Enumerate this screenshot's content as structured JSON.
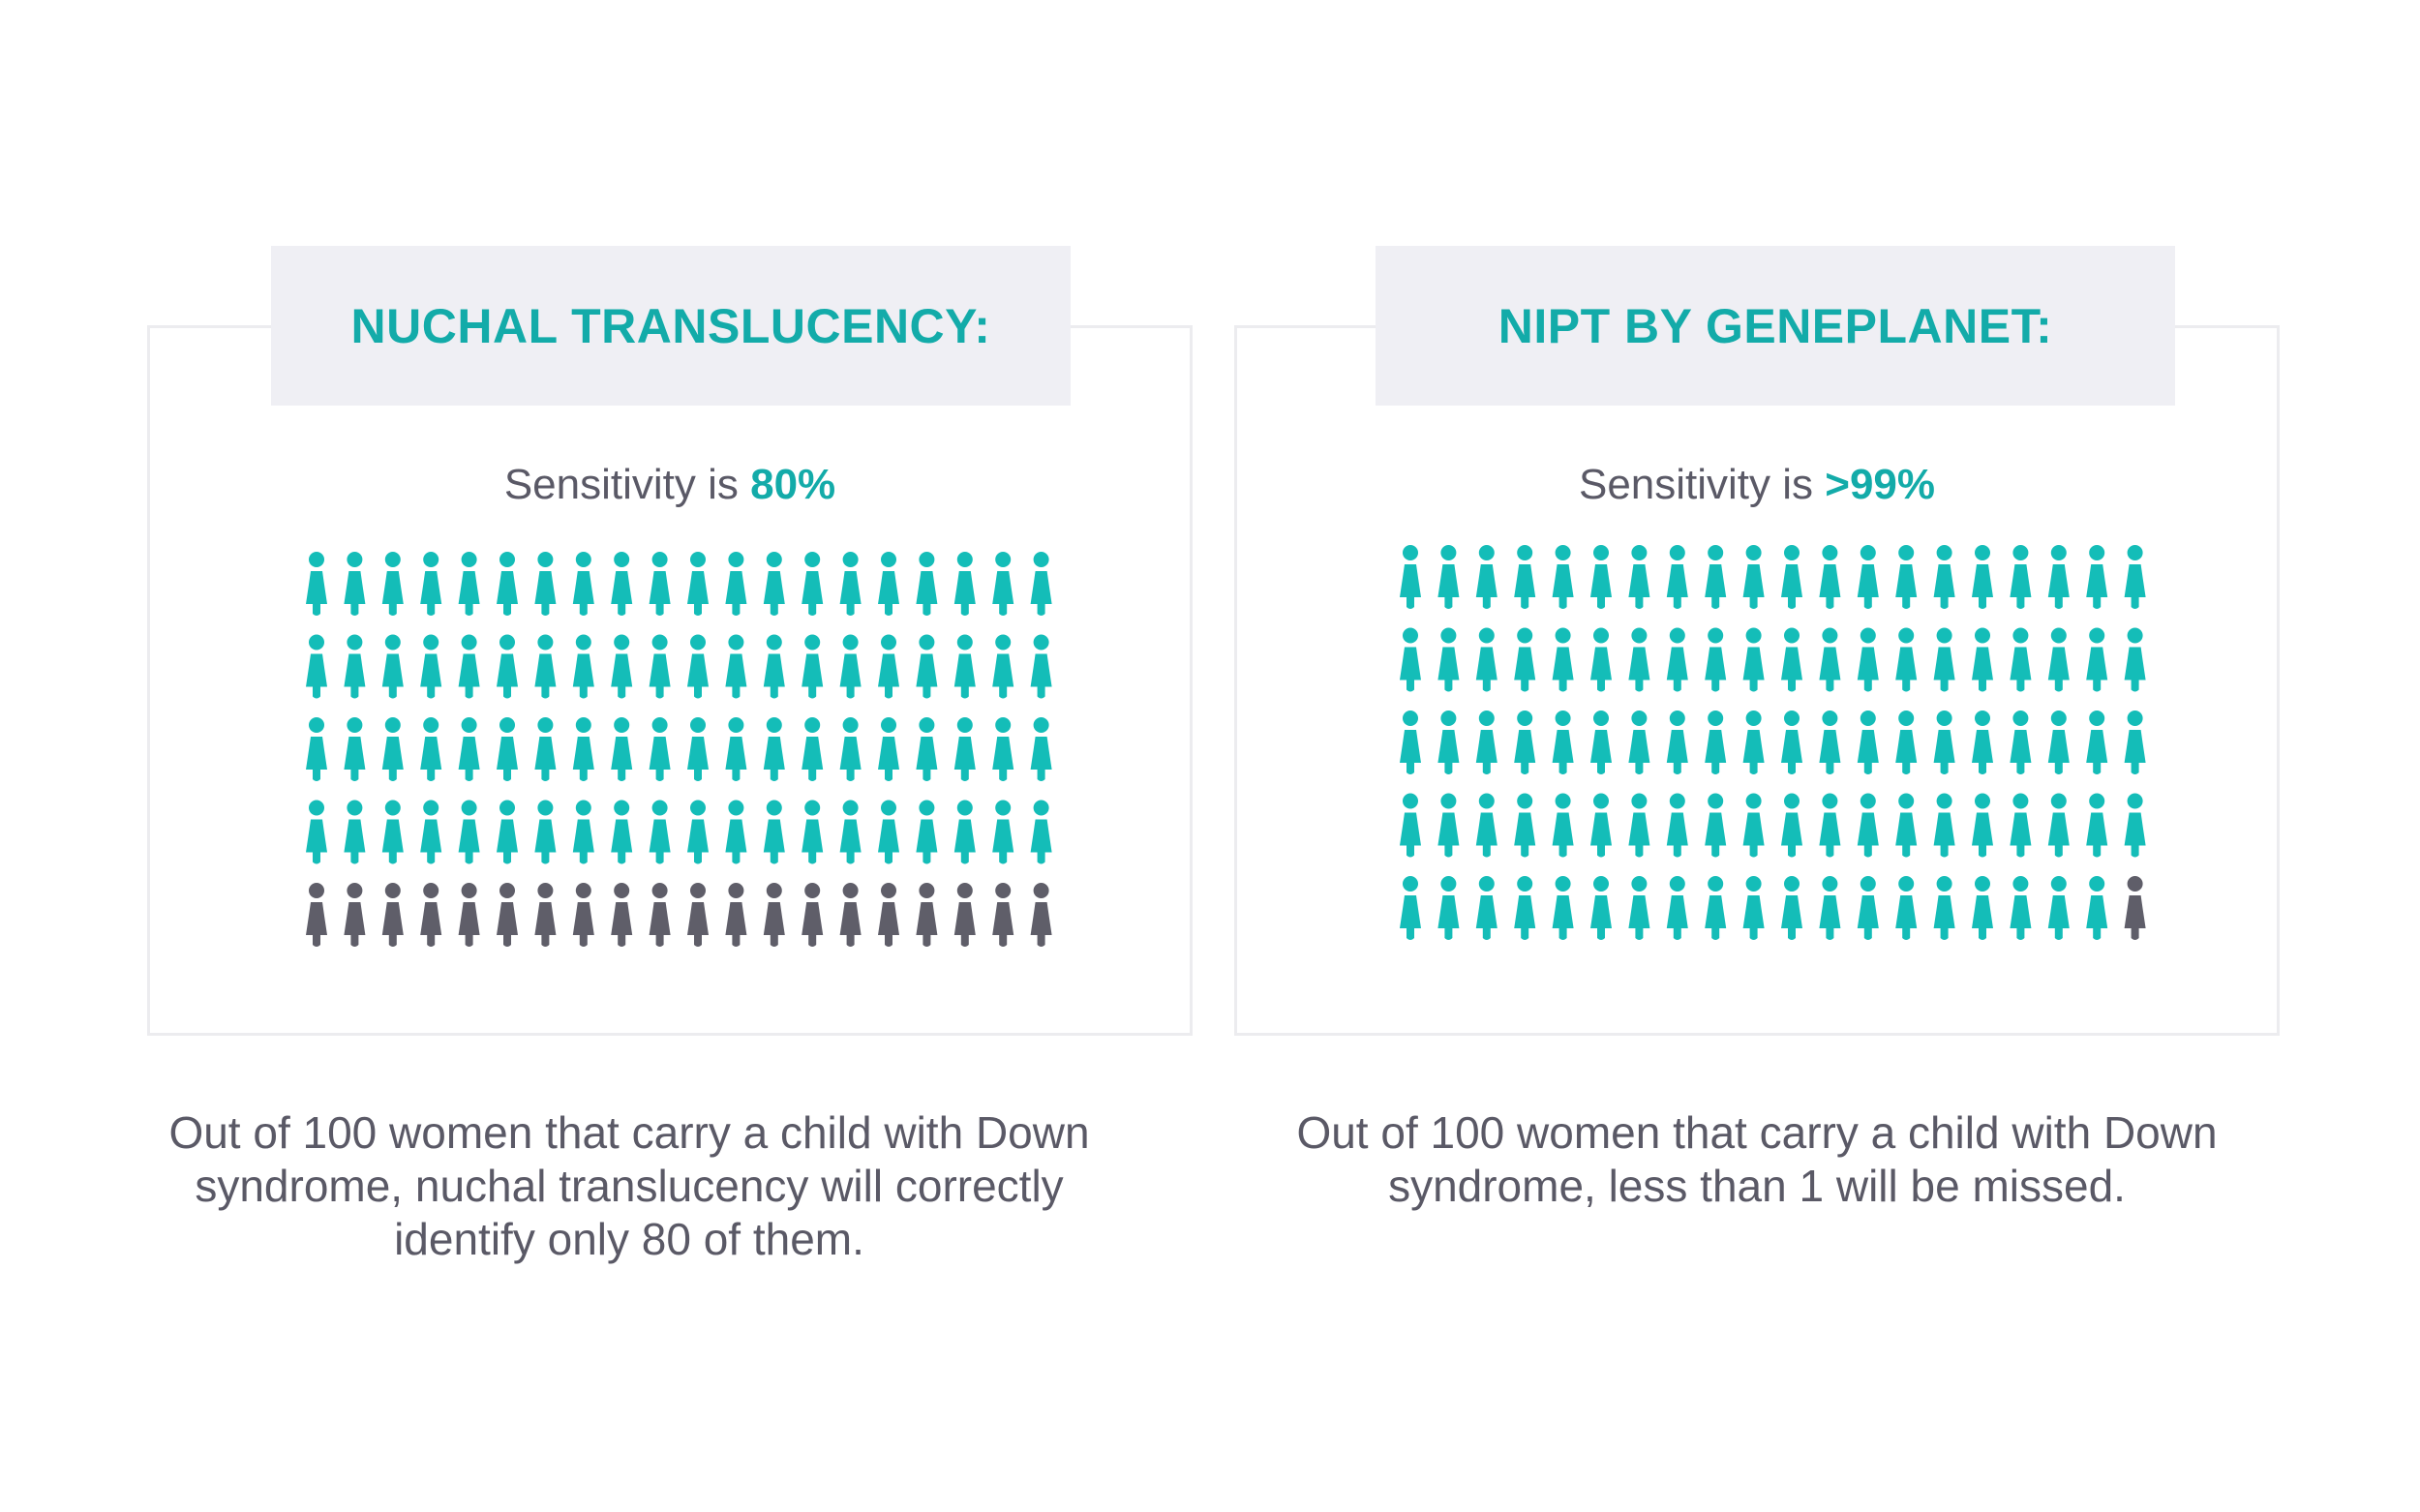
{
  "left": {
    "title": "NUCHAL TRANSLUCENCY:",
    "sensitivity_prefix": "Sensitivity is ",
    "sensitivity_value": "80%",
    "caption": "Out of 100 women that carry a child with Down syndrome, nuchal translucency will correctly identify only 80 of them.",
    "identified_count": 80,
    "missed_count": 20,
    "total": 100
  },
  "right": {
    "title": "NIPT BY GENEPLANET:",
    "sensitivity_prefix": "Sensitivity is ",
    "sensitivity_value": ">99%",
    "caption": "Out of 100 women that carry a child with Down syndrome, less than 1 will be missed.",
    "identified_count": 99,
    "missed_count": 1,
    "total": 100
  },
  "colors": {
    "accent": "#13aba9",
    "identified": "#14bdb8",
    "missed": "#5f5e69",
    "text": "#5a5966",
    "header_bg": "#efeff4",
    "border": "#ececef"
  },
  "icons": {
    "person": "woman-figure-icon"
  }
}
